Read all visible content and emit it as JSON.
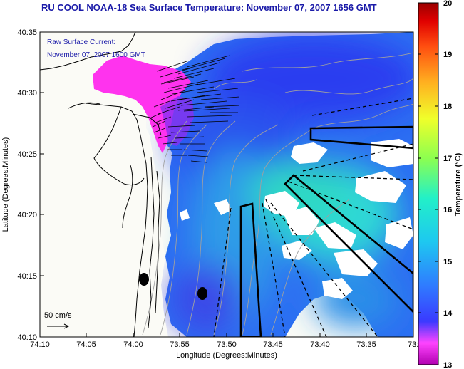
{
  "title": "RU COOL  NOAA-18  Sea Surface Temperature:  November 07, 2007 1656 GMT",
  "annotation": {
    "line1": "Raw Surface Current:",
    "line2": "November 07, 2007 1600 GMT"
  },
  "scale_arrow_label": "50 cm/s",
  "axes": {
    "xlabel": "Longitude (Degrees:Minutes)",
    "ylabel": "Latitude (Degrees:Minutes)",
    "x_ticks": [
      "74:10",
      "74:05",
      "74:00",
      "73:55",
      "73:50",
      "73:45",
      "73:40",
      "73:35",
      "73:3"
    ],
    "y_ticks": [
      "40:35",
      "40:30",
      "40:25",
      "40:20",
      "40:15",
      "40:10"
    ]
  },
  "colorbar": {
    "label": "Temperature (°C)",
    "min": 13,
    "max": 20,
    "ticks": [
      "20",
      "19",
      "18",
      "17",
      "16",
      "15",
      "14",
      "13"
    ],
    "colors": [
      "#b000b0",
      "#ff44ff",
      "#3a3aff",
      "#2f7cff",
      "#1ec8f0",
      "#22f0c8",
      "#8cff50",
      "#f0ff2a",
      "#ffb020",
      "#ff4e10",
      "#e00000",
      "#9a0000"
    ]
  },
  "map_colors": {
    "land": "#fbfbf6",
    "magenta": "#ff33ee",
    "deep_blue": "#2c42f0",
    "mid_blue": "#2f7df0",
    "cyan": "#2ccfe6",
    "teal": "#28dcc0"
  }
}
